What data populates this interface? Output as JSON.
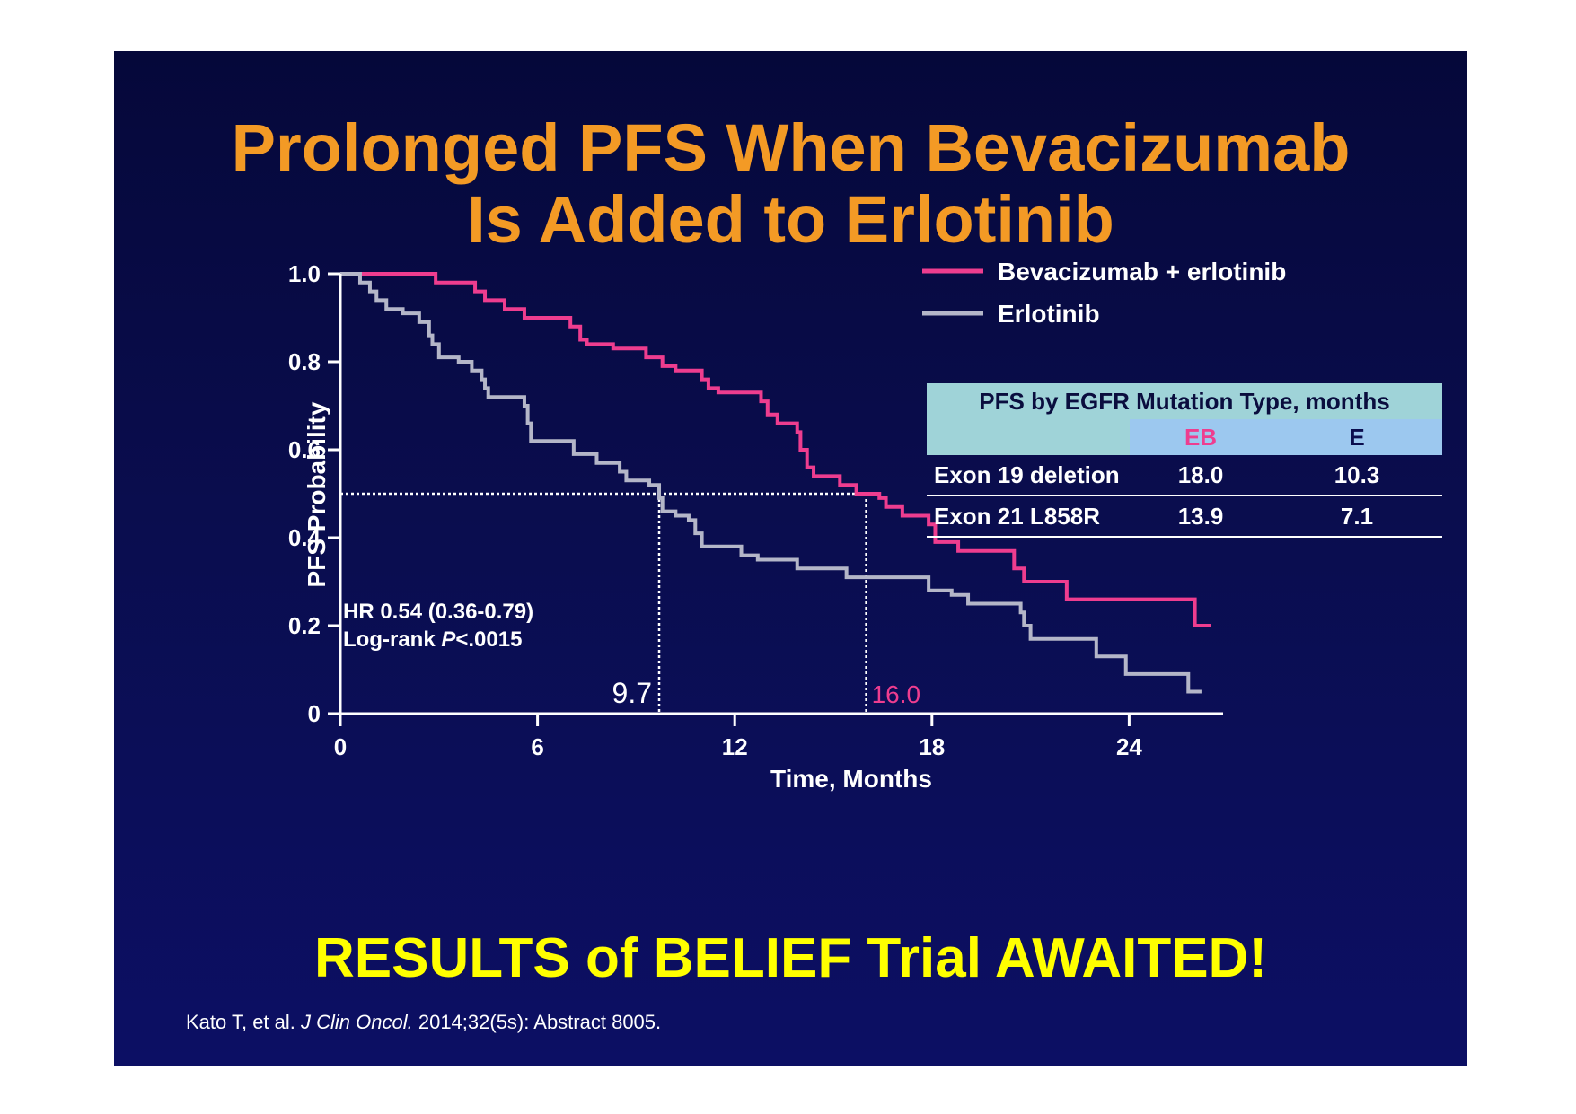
{
  "slide": {
    "title_line1": "Prolonged PFS When Bevacizumab",
    "title_line2": "Is Added to Erlotinib",
    "awaited": "RESULTS of BELIEF Trial AWAITED!",
    "citation_pre": "Kato T, et al. ",
    "citation_journal": "J Clin Oncol.",
    "citation_post": " 2014;32(5s): Abstract 8005.",
    "background_color": "#0a0d4e",
    "title_color": "#f39a25",
    "awaited_color": "#ffff00"
  },
  "table": {
    "caption": "PFS by EGFR Mutation Type, months",
    "col_eb": "EB",
    "col_e": "E",
    "rows": [
      {
        "name": "Exon 19 deletion",
        "eb": "18.0",
        "e": "10.3"
      },
      {
        "name": "Exon 21 L858R",
        "eb": "13.9",
        "e": "7.1"
      }
    ]
  },
  "chart_data": {
    "type": "line",
    "step": true,
    "xlabel": "Time, Months",
    "ylabel": "PFS Probability",
    "xlim": [
      0,
      28
    ],
    "ylim": [
      0,
      1
    ],
    "x_ticks": [
      0,
      6,
      12,
      18,
      24
    ],
    "y_ticks": [
      0,
      0.2,
      0.4,
      0.6,
      0.8,
      1.0
    ],
    "y_tick_labels": [
      "0",
      "0.2",
      "0.4",
      "0.6",
      "0.8",
      "1.0"
    ],
    "grid": false,
    "legend_position": "top-right",
    "median_line_y": 0.5,
    "medians": [
      {
        "label": "9.7",
        "x": 9.7,
        "color": "#ffffff"
      },
      {
        "label": "16.0",
        "x": 16.0,
        "color": "#ee3d8f"
      }
    ],
    "annotation_hr": "HR 0.54 (0.36-0.79)",
    "annotation_logrank_pre": "Log-rank ",
    "annotation_logrank_p": "P",
    "annotation_logrank_post": "<.0015",
    "series": [
      {
        "name": "Bevacizumab + erlotinib",
        "color": "#ee3d8f",
        "points": [
          [
            0,
            1.0
          ],
          [
            2.9,
            0.98
          ],
          [
            4.1,
            0.96
          ],
          [
            4.4,
            0.94
          ],
          [
            5.0,
            0.92
          ],
          [
            5.6,
            0.9
          ],
          [
            7.0,
            0.88
          ],
          [
            7.3,
            0.85
          ],
          [
            7.5,
            0.84
          ],
          [
            8.3,
            0.83
          ],
          [
            9.3,
            0.81
          ],
          [
            9.8,
            0.79
          ],
          [
            10.2,
            0.78
          ],
          [
            11.0,
            0.76
          ],
          [
            11.2,
            0.74
          ],
          [
            11.5,
            0.73
          ],
          [
            12.8,
            0.71
          ],
          [
            13.0,
            0.68
          ],
          [
            13.3,
            0.66
          ],
          [
            13.9,
            0.64
          ],
          [
            14.0,
            0.6
          ],
          [
            14.2,
            0.56
          ],
          [
            14.4,
            0.54
          ],
          [
            15.2,
            0.52
          ],
          [
            15.7,
            0.5
          ],
          [
            16.4,
            0.49
          ],
          [
            16.6,
            0.47
          ],
          [
            17.1,
            0.45
          ],
          [
            17.9,
            0.43
          ],
          [
            18.1,
            0.39
          ],
          [
            18.8,
            0.37
          ],
          [
            20.5,
            0.33
          ],
          [
            20.8,
            0.3
          ],
          [
            22.1,
            0.26
          ],
          [
            26.0,
            0.2
          ],
          [
            26.5,
            0.2
          ]
        ]
      },
      {
        "name": "Erlotinib",
        "color": "#b4b6c8",
        "points": [
          [
            0,
            1.0
          ],
          [
            0.6,
            0.98
          ],
          [
            0.9,
            0.96
          ],
          [
            1.1,
            0.94
          ],
          [
            1.4,
            0.92
          ],
          [
            1.9,
            0.91
          ],
          [
            2.4,
            0.89
          ],
          [
            2.7,
            0.86
          ],
          [
            2.8,
            0.84
          ],
          [
            3.0,
            0.81
          ],
          [
            3.6,
            0.8
          ],
          [
            4.0,
            0.78
          ],
          [
            4.3,
            0.76
          ],
          [
            4.4,
            0.74
          ],
          [
            4.5,
            0.72
          ],
          [
            5.6,
            0.7
          ],
          [
            5.7,
            0.66
          ],
          [
            5.8,
            0.62
          ],
          [
            7.1,
            0.59
          ],
          [
            7.8,
            0.57
          ],
          [
            8.5,
            0.55
          ],
          [
            8.7,
            0.53
          ],
          [
            9.4,
            0.52
          ],
          [
            9.7,
            0.49
          ],
          [
            9.8,
            0.46
          ],
          [
            10.2,
            0.45
          ],
          [
            10.6,
            0.44
          ],
          [
            10.8,
            0.41
          ],
          [
            11.0,
            0.38
          ],
          [
            12.2,
            0.36
          ],
          [
            12.7,
            0.35
          ],
          [
            13.9,
            0.33
          ],
          [
            15.4,
            0.31
          ],
          [
            17.2,
            0.31
          ],
          [
            17.9,
            0.28
          ],
          [
            18.6,
            0.27
          ],
          [
            19.1,
            0.25
          ],
          [
            20.7,
            0.23
          ],
          [
            20.8,
            0.2
          ],
          [
            21.0,
            0.17
          ],
          [
            23.0,
            0.13
          ],
          [
            23.9,
            0.09
          ],
          [
            25.8,
            0.05
          ],
          [
            26.2,
            0.05
          ]
        ]
      }
    ]
  }
}
